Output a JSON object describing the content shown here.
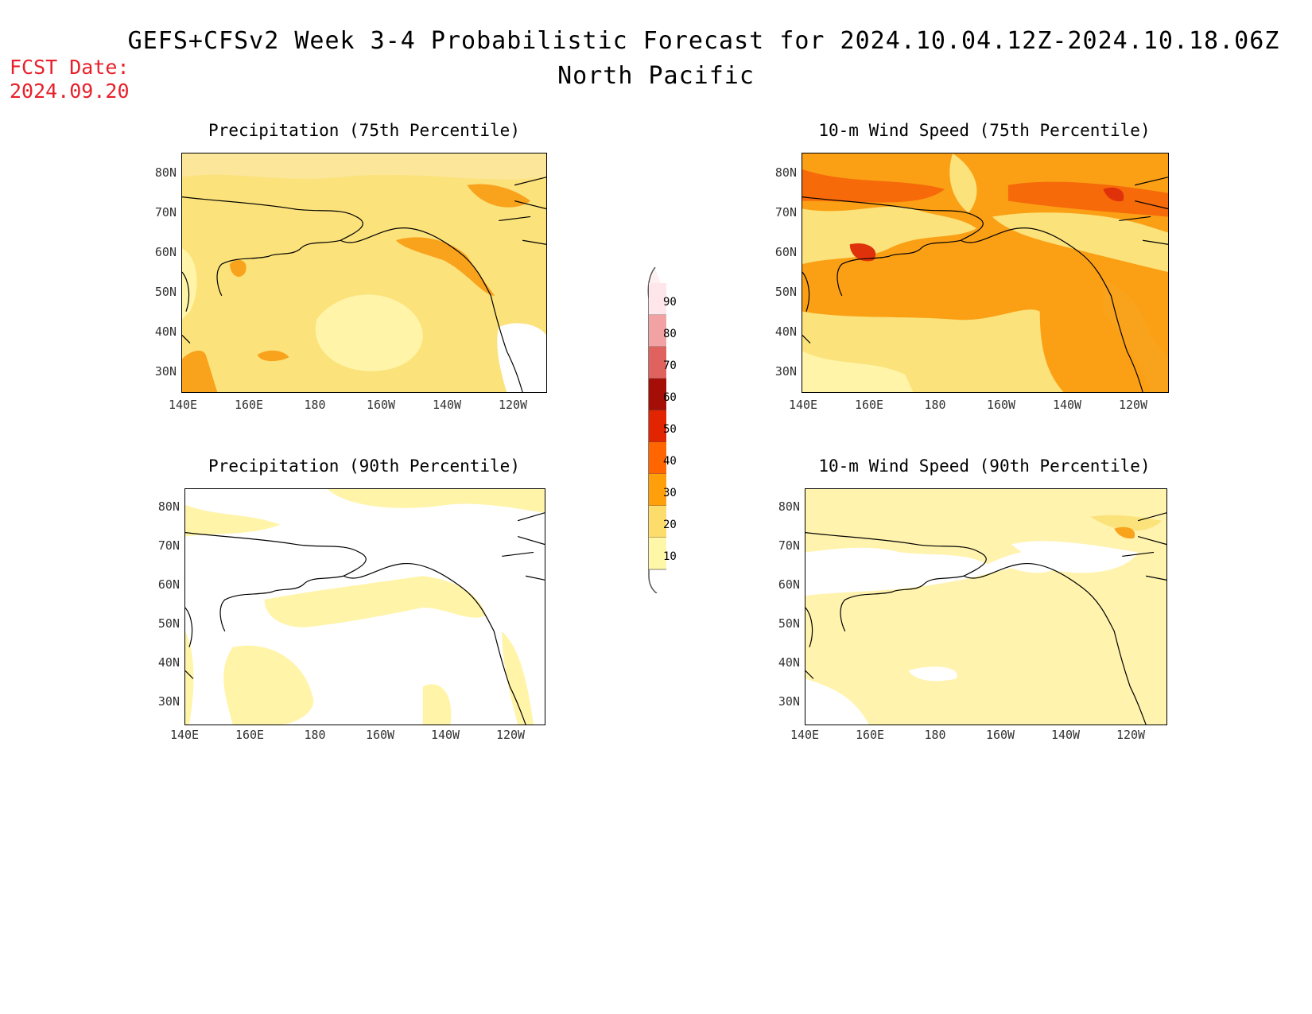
{
  "header": {
    "title": "GEFS+CFSv2 Week 3-4 Probabilistic Forecast for 2024.10.04.12Z-2024.10.18.06Z",
    "subtitle": "North Pacific",
    "fcst_label": "FCST Date:",
    "fcst_date": "2024.09.20"
  },
  "panels": [
    {
      "id": "precip75",
      "title": "Precipitation (75th Percentile)",
      "dominant_color": "#fbe27a"
    },
    {
      "id": "wind75",
      "title": "10-m Wind Speed (75th Percentile)",
      "dominant_color": "#fba015"
    },
    {
      "id": "precip90",
      "title": "Precipitation (90th Percentile)",
      "dominant_color": "#ffffff"
    },
    {
      "id": "wind90",
      "title": "10-m Wind Speed (90th Percentile)",
      "dominant_color": "#fff3ad"
    }
  ],
  "axes": {
    "lat_labels": [
      "80N",
      "70N",
      "60N",
      "50N",
      "40N",
      "30N"
    ],
    "lon_labels": [
      "140E",
      "160E",
      "180",
      "160W",
      "140W",
      "120W"
    ]
  },
  "colorbar": {
    "labels": [
      "90",
      "80",
      "70",
      "60",
      "50",
      "40",
      "30",
      "20",
      "10"
    ],
    "colors": [
      "#ffe6ea",
      "#f3a2a4",
      "#e0625e",
      "#a50d07",
      "#e02500",
      "#ff6600",
      "#ffa00a",
      "#fcdc6a",
      "#fff7a8"
    ]
  }
}
